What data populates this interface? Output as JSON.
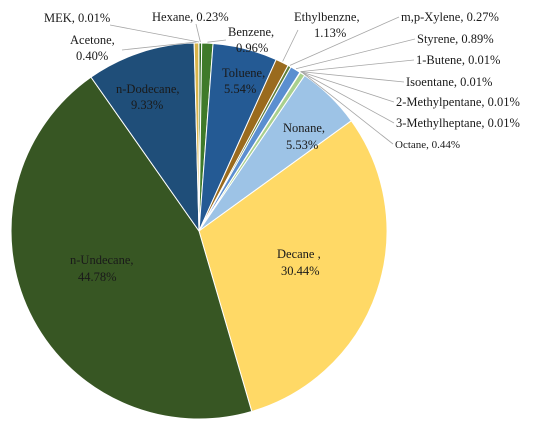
{
  "chart_data": {
    "type": "pie",
    "title": "",
    "slices": [
      {
        "name": "Hexane",
        "value": 0.23,
        "label": "0.23%",
        "color": "#2e6b1f"
      },
      {
        "name": "Benzene",
        "value": 0.96,
        "label": "0.96%",
        "color": "#3f7a2a"
      },
      {
        "name": "Toluene",
        "value": 5.54,
        "label": "5.54%",
        "color": "#245a94"
      },
      {
        "name": "Ethylbenzne",
        "value": 1.13,
        "label": "1.13%",
        "color": "#9a6b1e"
      },
      {
        "name": "m,p-Xylene",
        "value": 0.27,
        "label": "0.27%",
        "color": "#5f7f3a"
      },
      {
        "name": "Styrene",
        "value": 0.89,
        "label": "0.89%",
        "color": "#5b8fd0"
      },
      {
        "name": "1-Butene",
        "value": 0.01,
        "label": "0.01%",
        "color": "#bdbdbd"
      },
      {
        "name": "Isoentane",
        "value": 0.01,
        "label": "0.01%",
        "color": "#999999"
      },
      {
        "name": "2-Methylpentane",
        "value": 0.01,
        "label": "0.01%",
        "color": "#777777"
      },
      {
        "name": "3-Methylheptane",
        "value": 0.01,
        "label": "0.01%",
        "color": "#666666"
      },
      {
        "name": "Octane",
        "value": 0.44,
        "label": "0.44%",
        "color": "#a9d08e"
      },
      {
        "name": "Nonane",
        "value": 5.53,
        "label": "5.53%",
        "color": "#9dc3e6"
      },
      {
        "name": "Decane",
        "value": 30.44,
        "label": "30.44%",
        "color": "#ffd966"
      },
      {
        "name": "n-Undecane",
        "value": 44.78,
        "label": "44.78%",
        "color": "#375623"
      },
      {
        "name": "n-Dodecane",
        "value": 9.33,
        "label": "9.33%",
        "color": "#1f4e79"
      },
      {
        "name": "Acetone",
        "value": 0.4,
        "label": "0.40%",
        "color": "#d9b44a"
      },
      {
        "name": "MEK",
        "value": 0.01,
        "label": "0.01%",
        "color": "#c9a227"
      }
    ],
    "labels": {
      "hexane": "Hexane, 0.23%",
      "mek": "MEK, 0.01%",
      "acetone_name": "Acetone,",
      "acetone_value": "0.40%",
      "benzene_name": "Benzene,",
      "benzene_value": "0.96%",
      "ethylbenzne_name": "Ethylbenzne,",
      "ethylbenzne_value": "1.13%",
      "mp_xylene": "m,p-Xylene, 0.27%",
      "styrene": "Styrene, 0.89%",
      "butene": "1-Butene, 0.01%",
      "isoentane": "Isoentane, 0.01%",
      "methylpentane": "2-Methylpentane, 0.01%",
      "methylheptane": "3-Methylheptane, 0.01%",
      "octane": "Octane, 0.44%",
      "toluene_name": "Toluene,",
      "toluene_value": "5.54%",
      "nonane_name": "Nonane,",
      "nonane_value": "5.53%",
      "dodecane_name": "n-Dodecane,",
      "dodecane_value": "9.33%",
      "decane_name": "Decane ,",
      "decane_value": "30.44%",
      "undecane_name": "n-Undecane,",
      "undecane_value": "44.78%"
    },
    "legend": "none"
  }
}
